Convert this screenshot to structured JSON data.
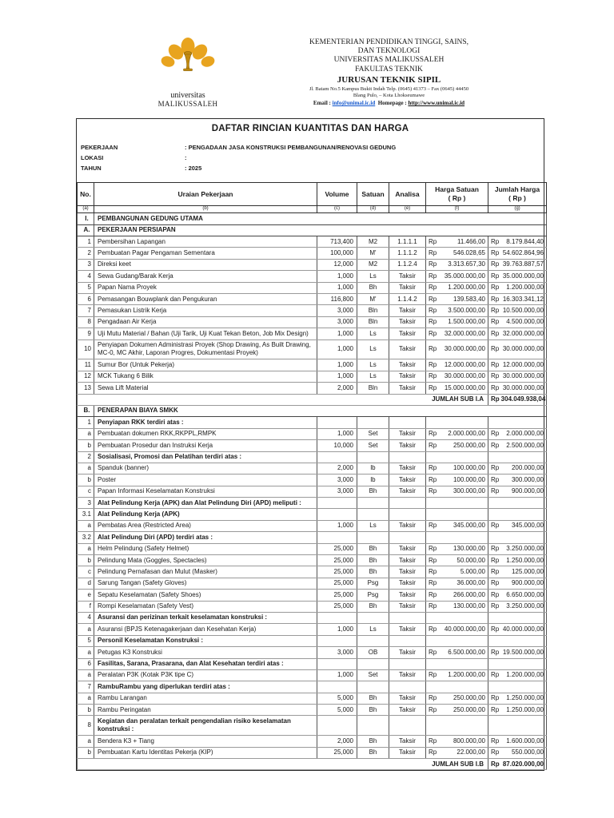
{
  "letterhead": {
    "logo_caption_line1": "universitas",
    "logo_caption_line2": "MALIKUSSALEH",
    "ministry_lines": [
      "KEMENTERIAN PENDIDIKAN TINGGI, SAINS,",
      "DAN TEKNOLOGI",
      "UNIVERSITAS MALIKUSSALEH",
      "FAKULTAS TEKNIK"
    ],
    "department": "JURUSAN TEKNIK SIPIL",
    "address_line1": "Jl. Batam No.5 Kampus Bukit Indah Telp. (0645) 41373 – Fax (0645) 44450",
    "address_line2": "Blang Pulo, – Kota Lhokseumawe",
    "email_label": "Email :",
    "email": "info@unimal.ic.id",
    "homepage_label": "Homepage :",
    "homepage": "http://www.unimal.ic.id",
    "colors": {
      "logo_yellow": "#E8A41F",
      "logo_green": "#1F9E45",
      "logo_gold": "#C28A10",
      "link_blue": "#1155CC"
    }
  },
  "document": {
    "title": "DAFTAR RINCIAN KUANTITAS DAN HARGA",
    "info": [
      {
        "label": "PEKERJAAN",
        "value": ": PENGADAAN JASA KONSTRUKSI PEMBANGUNAN/RENOVASI GEDUNG"
      },
      {
        "label": "LOKASI",
        "value": ":"
      },
      {
        "label": "TAHUN",
        "value": ": 2025"
      }
    ]
  },
  "table": {
    "currency": "Rp",
    "columns": [
      {
        "label": "No."
      },
      {
        "label": "Uraian Pekerjaan"
      },
      {
        "label": "Volume"
      },
      {
        "label": "Satuan"
      },
      {
        "label": "Analisa"
      },
      {
        "label": "Harga Satuan",
        "sub": "( Rp )"
      },
      {
        "label": "Jumlah Harga",
        "sub": "( Rp )"
      }
    ],
    "col_letters": [
      "(a)",
      "(b)",
      "(c)",
      "(d)",
      "(e)",
      "(f)",
      "(g)"
    ],
    "rows": [
      {
        "type": "section",
        "no": "I.",
        "uraian": "PEMBANGUNAN GEDUNG UTAMA"
      },
      {
        "type": "section",
        "no": "A.",
        "uraian": "PEKERJAAN PERSIAPAN"
      },
      {
        "type": "item",
        "no": "1",
        "uraian": "Pembersihan Lapangan",
        "volume": "713,400",
        "satuan": "M2",
        "analisa": "1.1.1.1",
        "harga": "11.466,00",
        "jumlah": "8.179.844,40"
      },
      {
        "type": "item",
        "no": "2",
        "uraian": "Pembuatan Pagar Pengaman Sementara",
        "volume": "100,000",
        "satuan": "M'",
        "analisa": "1.1.1.2",
        "harga": "546.028,65",
        "jumlah": "54.602.864,96"
      },
      {
        "type": "item",
        "no": "3",
        "uraian": "Direksi keet",
        "volume": "12,000",
        "satuan": "M2",
        "analisa": "1.1.2.4",
        "harga": "3.313.657,30",
        "jumlah": "39.763.887,57"
      },
      {
        "type": "item",
        "no": "4",
        "uraian": "Sewa Gudang/Barak Kerja",
        "volume": "1,000",
        "satuan": "Ls",
        "analisa": "Taksir",
        "harga": "35.000.000,00",
        "jumlah": "35.000.000,00"
      },
      {
        "type": "item",
        "no": "5",
        "uraian": "Papan Nama Proyek",
        "volume": "1,000",
        "satuan": "Bh",
        "analisa": "Taksir",
        "harga": "1.200.000,00",
        "jumlah": "1.200.000,00"
      },
      {
        "type": "item",
        "no": "6",
        "uraian": "Pemasangan Bouwplank dan Pengukuran",
        "volume": "116,800",
        "satuan": "M'",
        "analisa": "1.1.4.2",
        "harga": "139.583,40",
        "jumlah": "16.303.341,12"
      },
      {
        "type": "item",
        "no": "7",
        "uraian": "Pemasukan Listrik Kerja",
        "volume": "3,000",
        "satuan": "Bln",
        "analisa": "Taksir",
        "harga": "3.500.000,00",
        "jumlah": "10.500.000,00"
      },
      {
        "type": "item",
        "no": "8",
        "uraian": "Pengadaan Air Kerja",
        "volume": "3,000",
        "satuan": "Bln",
        "analisa": "Taksir",
        "harga": "1.500.000,00",
        "jumlah": "4.500.000,00"
      },
      {
        "type": "item",
        "no": "9",
        "uraian": "Uji Mutu Material / Bahan (Uji Tarik, Uji Kuat Tekan Beton, Job Mix Design)",
        "volume": "1,000",
        "satuan": "Ls",
        "analisa": "Taksir",
        "harga": "32.000.000,00",
        "jumlah": "32.000.000,00"
      },
      {
        "type": "item",
        "no": "10",
        "uraian": "Penyiapan Dokumen Administrasi Proyek (Shop Drawing, As Built Drawing, MC-0, MC Akhir, Laporan Progres, Dokumentasi Proyek)",
        "volume": "1,000",
        "satuan": "Ls",
        "analisa": "Taksir",
        "harga": "30.000.000,00",
        "jumlah": "30.000.000,00"
      },
      {
        "type": "item",
        "no": "11",
        "uraian": "Sumur Bor (Untuk Pekerja)",
        "volume": "1,000",
        "satuan": "Ls",
        "analisa": "Taksir",
        "harga": "12.000.000,00",
        "jumlah": "12.000.000,00"
      },
      {
        "type": "item",
        "no": "12",
        "uraian": "MCK Tukang 6 Bilik",
        "volume": "1,000",
        "satuan": "Ls",
        "analisa": "Taksir",
        "harga": "30.000.000,00",
        "jumlah": "30.000.000,00"
      },
      {
        "type": "item",
        "no": "13",
        "uraian": "Sewa Lift Material",
        "volume": "2,000",
        "satuan": "Bln",
        "analisa": "Taksir",
        "harga": "15.000.000,00",
        "jumlah": "30.000.000,00"
      },
      {
        "type": "subtotal",
        "label": "JUMLAH SUB I.A",
        "jumlah": "304.049.938,04"
      },
      {
        "type": "section",
        "no": "B.",
        "uraian": "PENERAPAN BIAYA SMKK"
      },
      {
        "type": "group",
        "no": "1",
        "uraian": "Penyiapan RKK terdiri atas :"
      },
      {
        "type": "item",
        "no": "a",
        "uraian": "Pembuatan dokumen RKK,RKPPL,RMPK",
        "volume": "1,000",
        "satuan": "Set",
        "analisa": "Taksir",
        "harga": "2.000.000,00",
        "jumlah": "2.000.000,00"
      },
      {
        "type": "item",
        "no": "b",
        "uraian": "Pembuatan Prosedur dan Instruksi Kerja",
        "volume": "10,000",
        "satuan": "Set",
        "analisa": "Taksir",
        "harga": "250.000,00",
        "jumlah": "2.500.000,00"
      },
      {
        "type": "group",
        "no": "2",
        "uraian": "Sosialisasi, Promosi dan Pelatihan terdiri atas :"
      },
      {
        "type": "item",
        "no": "a",
        "uraian": "Spanduk (banner)",
        "volume": "2,000",
        "satuan": "lb",
        "analisa": "Taksir",
        "harga": "100.000,00",
        "jumlah": "200.000,00"
      },
      {
        "type": "item",
        "no": "b",
        "uraian": "Poster",
        "volume": "3,000",
        "satuan": "lb",
        "analisa": "Taksir",
        "harga": "100.000,00",
        "jumlah": "300.000,00"
      },
      {
        "type": "item",
        "no": "c",
        "uraian": "Papan Informasi Keselamatan Konstruksi",
        "volume": "3,000",
        "satuan": "Bh",
        "analisa": "Taksir",
        "harga": "300.000,00",
        "jumlah": "900.000,00"
      },
      {
        "type": "group",
        "no": "3",
        "uraian": "Alat Pelindung Kerja (APK) dan Alat Pelindung Diri (APD) meliputi :"
      },
      {
        "type": "group",
        "no": "3.1",
        "uraian": "Alat Pelindung Kerja (APK)"
      },
      {
        "type": "item",
        "no": "a",
        "uraian": "Pembatas Area (Restricted Area)",
        "volume": "1,000",
        "satuan": "Ls",
        "analisa": "Taksir",
        "harga": "345.000,00",
        "jumlah": "345.000,00"
      },
      {
        "type": "group",
        "no": "3.2",
        "uraian": "Alat Pelindung Diri (APD) terdiri atas :"
      },
      {
        "type": "item",
        "no": "a",
        "uraian": "Helm Pelindung (Safety Helmet)",
        "volume": "25,000",
        "satuan": "Bh",
        "analisa": "Taksir",
        "harga": "130.000,00",
        "jumlah": "3.250.000,00"
      },
      {
        "type": "item",
        "no": "b",
        "uraian": "Pelindung Mata (Goggles, Spectacles)",
        "volume": "25,000",
        "satuan": "Bh",
        "analisa": "Taksir",
        "harga": "50.000,00",
        "jumlah": "1.250.000,00"
      },
      {
        "type": "item",
        "no": "c",
        "uraian": "Pelindung Pernafasan dan Mulut (Masker)",
        "volume": "25,000",
        "satuan": "Bh",
        "analisa": "Taksir",
        "harga": "5.000,00",
        "jumlah": "125.000,00"
      },
      {
        "type": "item",
        "no": "d",
        "uraian": "Sarung Tangan (Safety Gloves)",
        "volume": "25,000",
        "satuan": "Psg",
        "analisa": "Taksir",
        "harga": "36.000,00",
        "jumlah": "900.000,00"
      },
      {
        "type": "item",
        "no": "e",
        "uraian": "Sepatu Keselamatan (Safety Shoes)",
        "volume": "25,000",
        "satuan": "Psg",
        "analisa": "Taksir",
        "harga": "266.000,00",
        "jumlah": "6.650.000,00"
      },
      {
        "type": "item",
        "no": "f",
        "uraian": "Rompi Keselamatan (Safety Vest)",
        "volume": "25,000",
        "satuan": "Bh",
        "analisa": "Taksir",
        "harga": "130.000,00",
        "jumlah": "3.250.000,00"
      },
      {
        "type": "group",
        "no": "4",
        "uraian": "Asuransi dan perizinan terkait keselamatan konstruksi :"
      },
      {
        "type": "item",
        "no": "a",
        "uraian": "Asuransi (BPJS Ketenagakerjaan dan Kesehatan Kerja)",
        "volume": "1,000",
        "satuan": "Ls",
        "analisa": "Taksir",
        "harga": "40.000.000,00",
        "jumlah": "40.000.000,00"
      },
      {
        "type": "group",
        "no": "5",
        "uraian": "Personil Keselamatan Konstruksi :"
      },
      {
        "type": "item",
        "no": "a",
        "uraian": "Petugas K3 Konstruksi",
        "volume": "3,000",
        "satuan": "OB",
        "analisa": "Taksir",
        "harga": "6.500.000,00",
        "jumlah": "19.500.000,00"
      },
      {
        "type": "group",
        "no": "6",
        "uraian": "Fasilitas, Sarana, Prasarana, dan Alat Kesehatan terdiri atas :"
      },
      {
        "type": "item",
        "no": "a",
        "uraian": "Peralatan P3K (Kotak P3K tipe C)",
        "volume": "1,000",
        "satuan": "Set",
        "analisa": "Taksir",
        "harga": "1.200.000,00",
        "jumlah": "1.200.000,00"
      },
      {
        "type": "group",
        "no": "7",
        "uraian": "RambuRambu yang diperlukan terdiri atas :"
      },
      {
        "type": "item",
        "no": "a",
        "uraian": "Rambu Larangan",
        "volume": "5,000",
        "satuan": "Bh",
        "analisa": "Taksir",
        "harga": "250.000,00",
        "jumlah": "1.250.000,00"
      },
      {
        "type": "item",
        "no": "b",
        "uraian": "Rambu Peringatan",
        "volume": "5,000",
        "satuan": "Bh",
        "analisa": "Taksir",
        "harga": "250.000,00",
        "jumlah": "1.250.000,00"
      },
      {
        "type": "group",
        "no": "8",
        "uraian": "Kegiatan dan peralatan terkait pengendalian risiko keselamatan konstruksi :"
      },
      {
        "type": "item",
        "no": "a",
        "uraian": "Bendera K3 + Tiang",
        "volume": "2,000",
        "satuan": "Bh",
        "analisa": "Taksir",
        "harga": "800.000,00",
        "jumlah": "1.600.000,00"
      },
      {
        "type": "item",
        "no": "b",
        "uraian": "Pembuatan Kartu Identitas Pekerja (KIP)",
        "volume": "25,000",
        "satuan": "Bh",
        "analisa": "Taksir",
        "harga": "22.000,00",
        "jumlah": "550.000,00"
      },
      {
        "type": "subtotal",
        "label": "JUMLAH SUB I.B",
        "jumlah": "87.020.000,00"
      }
    ]
  }
}
